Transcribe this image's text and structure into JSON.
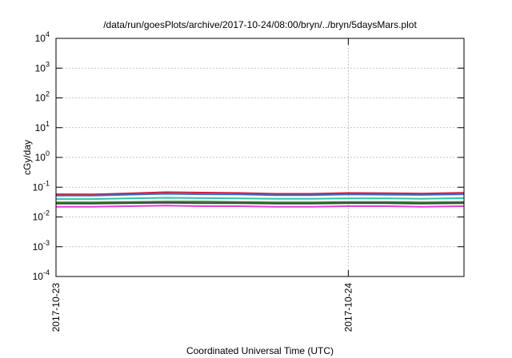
{
  "chart_data": {
    "type": "line",
    "title": "/data/run/goesPlots/archive/2017-10-24/08:00/bryn/../bryn/5daysMars.plot",
    "xlabel": "Coordinated Universal Time (UTC)",
    "ylabel": "cGy/day",
    "yscale": "log",
    "ylim": [
      0.0001,
      10000
    ],
    "y_ticks": [
      {
        "value": 0.0001,
        "base": "10",
        "exp": "-4"
      },
      {
        "value": 0.001,
        "base": "10",
        "exp": "-3"
      },
      {
        "value": 0.01,
        "base": "10",
        "exp": "-2"
      },
      {
        "value": 0.1,
        "base": "10",
        "exp": "-1"
      },
      {
        "value": 1,
        "base": "10",
        "exp": "0"
      },
      {
        "value": 10,
        "base": "10",
        "exp": "1"
      },
      {
        "value": 100,
        "base": "10",
        "exp": "2"
      },
      {
        "value": 1000,
        "base": "10",
        "exp": "3"
      },
      {
        "value": 10000,
        "base": "10",
        "exp": "4"
      }
    ],
    "xlim": [
      "2017-10-23T00:00",
      "2017-10-24T09:30"
    ],
    "x_ticks": [
      {
        "value": "2017-10-23T00:00",
        "label": "2017-10-23"
      },
      {
        "value": "2017-10-24T00:00",
        "label": "2017-10-24"
      }
    ],
    "grid": true,
    "x": [
      "2017-10-23T00:00",
      "2017-10-23T03:00",
      "2017-10-23T06:00",
      "2017-10-23T09:00",
      "2017-10-23T12:00",
      "2017-10-23T15:00",
      "2017-10-23T18:00",
      "2017-10-23T21:00",
      "2017-10-24T00:00",
      "2017-10-24T03:00",
      "2017-10-24T06:00",
      "2017-10-24T09:30"
    ],
    "series": [
      {
        "color": "#cc1f3a",
        "values": [
          0.058,
          0.057,
          0.062,
          0.068,
          0.066,
          0.064,
          0.06,
          0.06,
          0.064,
          0.063,
          0.061,
          0.065
        ]
      },
      {
        "color": "#3b6ccf",
        "values": [
          0.052,
          0.052,
          0.056,
          0.06,
          0.058,
          0.057,
          0.054,
          0.054,
          0.057,
          0.056,
          0.055,
          0.058
        ]
      },
      {
        "color": "#2fc4a8",
        "values": [
          0.04,
          0.04,
          0.042,
          0.044,
          0.043,
          0.042,
          0.041,
          0.041,
          0.042,
          0.042,
          0.041,
          0.043
        ]
      },
      {
        "color": "#2b8a2b",
        "values": [
          0.031,
          0.031,
          0.032,
          0.033,
          0.033,
          0.032,
          0.031,
          0.031,
          0.032,
          0.032,
          0.031,
          0.032
        ]
      },
      {
        "color": "#444444",
        "values": [
          0.028,
          0.028,
          0.029,
          0.03,
          0.029,
          0.029,
          0.028,
          0.028,
          0.029,
          0.029,
          0.028,
          0.029
        ]
      },
      {
        "color": "#e33bd8",
        "values": [
          0.022,
          0.022,
          0.023,
          0.024,
          0.023,
          0.023,
          0.022,
          0.022,
          0.023,
          0.023,
          0.022,
          0.023
        ]
      }
    ]
  }
}
